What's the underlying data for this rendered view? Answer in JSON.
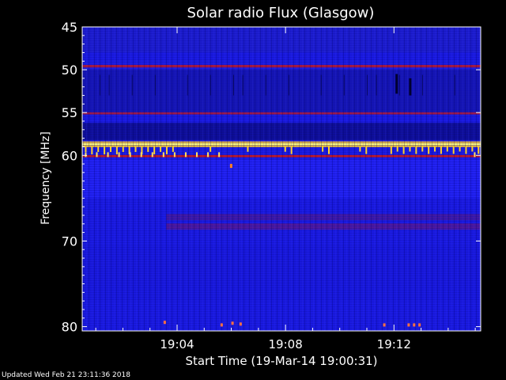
{
  "chart_data": {
    "type": "heatmap",
    "title": "Solar radio Flux (Glasgow)",
    "xlabel": "Start Time (19-Mar-14 19:00:31)",
    "ylabel": "Frequency [MHz]",
    "ylim": [
      45,
      80.5
    ],
    "y_inverted": true,
    "xlim_minutes": [
      0.5,
      15.2
    ],
    "y_ticks": [
      "45",
      "50",
      "55",
      "60",
      "70",
      "80"
    ],
    "y_tick_values": [
      45,
      50,
      55,
      60,
      70,
      80
    ],
    "x_ticks": [
      "19:04",
      "19:08",
      "19:12"
    ],
    "x_tick_values": [
      4,
      8,
      12
    ],
    "colors": {
      "background": "#000000",
      "low": "#1010c8",
      "mid": "#2a2aff",
      "red_band": "#c01818",
      "hot": "#ffd028",
      "peak": "#ffff80"
    },
    "bands": [
      {
        "freq": 49.6,
        "color": "#c81818",
        "kind": "interference line"
      },
      {
        "freq": 55.1,
        "color": "#a01840",
        "kind": "interference line"
      },
      {
        "freq": 58.7,
        "color": "#ffd028",
        "kind": "strong interference"
      },
      {
        "freq": 60.1,
        "color": "#c81818",
        "kind": "interference line"
      },
      {
        "freq": 67.2,
        "color": "#601870",
        "kind": "broad band"
      },
      {
        "freq": 68.3,
        "color": "#7a1660",
        "kind": "broad band"
      }
    ],
    "dark_bursts": [
      {
        "time_min": 12.1,
        "freq_from": 50.5,
        "freq_to": 52.8
      },
      {
        "time_min": 12.6,
        "freq_from": 51.0,
        "freq_to": 53.0
      }
    ]
  },
  "footer": {
    "updated": "Updated Wed Feb 21 23:11:36 2018"
  }
}
